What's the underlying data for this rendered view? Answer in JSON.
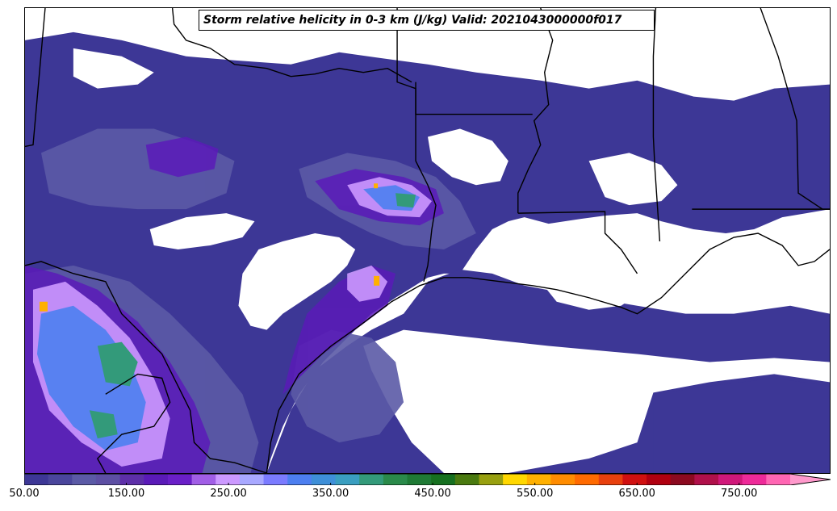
{
  "title": "Storm relative helicity in 0-3 km (J/kg) Valid: 2021043000000f017",
  "colorbar": {
    "min": 50,
    "max": 800,
    "step": 25,
    "extend": "max",
    "tick_labels": [
      "50.00",
      "150.00",
      "250.00",
      "350.00",
      "450.00",
      "550.00",
      "650.00",
      "750.00"
    ],
    "tick_values": [
      50,
      150,
      250,
      350,
      450,
      550,
      650,
      750
    ],
    "colors": [
      "#3d3796",
      "#4a469c",
      "#5b5aa6",
      "#5d4fa3",
      "#5d2fa8",
      "#5a1ab8",
      "#6a1fc8",
      "#a15ee6",
      "#cc99ff",
      "#a8a8ff",
      "#7b7bff",
      "#4d7ff0",
      "#3e8fd8",
      "#3a9ec0",
      "#339a7a",
      "#2a8a4a",
      "#1f7a35",
      "#167020",
      "#4a7a10",
      "#98a010",
      "#ffd700",
      "#ffb000",
      "#ff8c00",
      "#ff6a00",
      "#e8400e",
      "#d01010",
      "#b00010",
      "#8c0a20",
      "#b0104a",
      "#d0187a",
      "#ee2a99",
      "#ff66b3"
    ],
    "extend_color": "#ff99cc"
  },
  "map": {
    "background": "#ffffff",
    "boundary_color": "#000000",
    "field_base_color": "#3d3796",
    "field_mid_color": "#5b5aa6",
    "field_purple_color": "#5a1ab8",
    "field_lavender_color": "#cc99ff",
    "field_blue_color": "#4d7ff0",
    "field_green_color": "#339a7a",
    "field_peak_color": "#ffb000"
  }
}
